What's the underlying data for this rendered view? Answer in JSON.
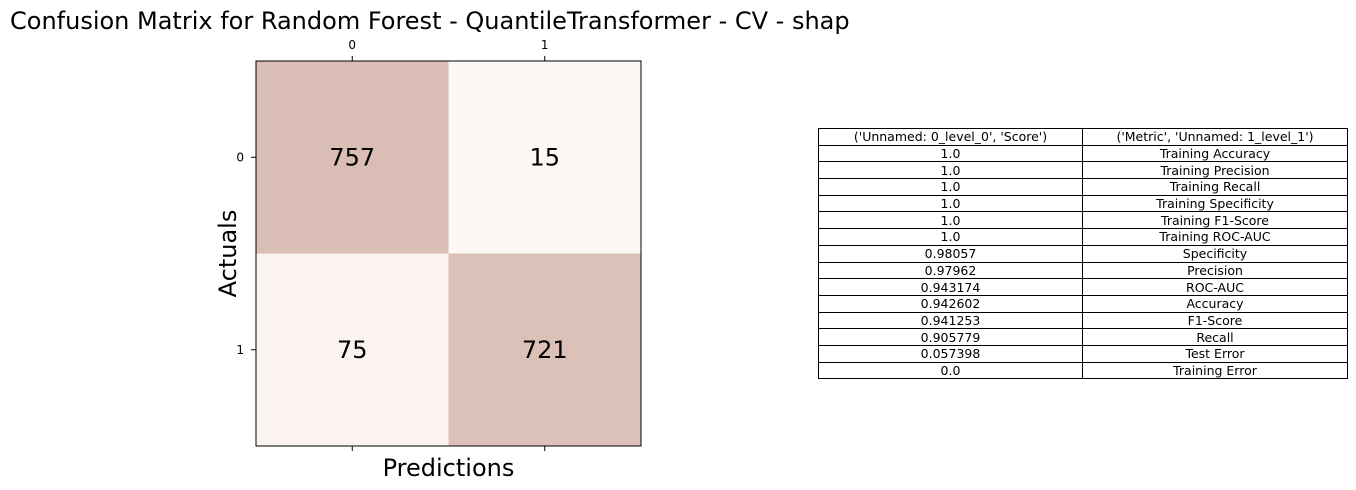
{
  "figure_title": "Confusion Matrix for Random Forest - QuantileTransformer - CV - shap",
  "colors": {
    "high": "#dabeb6",
    "low": "#fdf8f4",
    "text": "#000000",
    "grid": "#000000"
  },
  "chart_data": {
    "type": "heatmap",
    "title": "Confusion Matrix for Random Forest - QuantileTransformer - CV - shap",
    "xlabel": "Predictions",
    "ylabel": "Actuals",
    "x_ticks": [
      "0",
      "1"
    ],
    "y_ticks": [
      "0",
      "1"
    ],
    "matrix": [
      [
        757,
        15
      ],
      [
        75,
        721
      ]
    ],
    "x_tick_position": "top"
  },
  "table": {
    "headers": [
      "('Unnamed: 0_level_0', 'Score')",
      "('Metric', 'Unnamed: 1_level_1')"
    ],
    "rows": [
      [
        "1.0",
        "Training Accuracy"
      ],
      [
        "1.0",
        "Training Precision"
      ],
      [
        "1.0",
        "Training Recall"
      ],
      [
        "1.0",
        "Training Specificity"
      ],
      [
        "1.0",
        "Training F1-Score"
      ],
      [
        "1.0",
        "Training ROC-AUC"
      ],
      [
        "0.98057",
        "Specificity"
      ],
      [
        "0.97962",
        "Precision"
      ],
      [
        "0.943174",
        "ROC-AUC"
      ],
      [
        "0.942602",
        "Accuracy"
      ],
      [
        "0.941253",
        "F1-Score"
      ],
      [
        "0.905779",
        "Recall"
      ],
      [
        "0.057398",
        "Test Error"
      ],
      [
        "0.0",
        "Training Error"
      ]
    ]
  }
}
